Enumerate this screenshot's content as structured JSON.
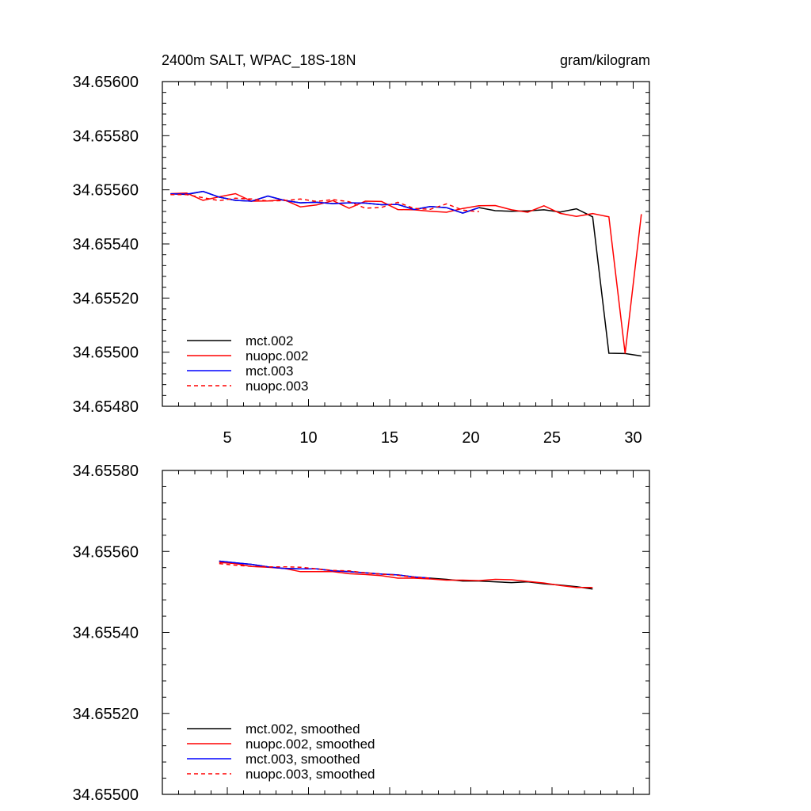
{
  "title": "2400m SALT, WPAC_18S-18N",
  "units": "gram/kilogram",
  "chart_data": [
    {
      "type": "line",
      "name": "raw",
      "xlim": [
        1,
        31
      ],
      "ylim": [
        34.6548,
        34.656
      ],
      "x_ticks": [
        5,
        10,
        15,
        20,
        25,
        30
      ],
      "x_tick_labels": [
        "5",
        "10",
        "15",
        "20",
        "25",
        "30"
      ],
      "y_ticks": [
        34.6548,
        34.655,
        34.6552,
        34.6554,
        34.6556,
        34.6558,
        34.656
      ],
      "y_tick_labels": [
        "34.65480",
        "34.65500",
        "34.65520",
        "34.65540",
        "34.65560",
        "34.65580",
        "34.65600"
      ],
      "legend_position": "bottom-left",
      "series": [
        {
          "name": "mct.002",
          "color": "#000000",
          "dashed": false,
          "x": [
            1.5,
            2.5,
            3.5,
            4.5,
            5.5,
            6.5,
            7.5,
            8.5,
            9.5,
            10.5,
            11.5,
            12.5,
            13.5,
            14.5,
            15.5,
            16.5,
            17.5,
            18.5,
            19.5,
            20.5,
            21.5,
            22.5,
            23.5,
            24.5,
            25.5,
            26.5,
            27.5,
            28.5,
            29.5,
            30.5
          ],
          "values": [
            34.655585,
            34.655583,
            34.655594,
            34.655573,
            34.655561,
            34.655558,
            34.655577,
            34.655561,
            34.655552,
            34.655554,
            34.655549,
            34.655552,
            34.655551,
            34.655545,
            34.655546,
            34.655527,
            34.655538,
            34.655534,
            34.655514,
            34.655534,
            34.655523,
            34.655521,
            34.655522,
            34.655526,
            34.655518,
            34.65553,
            34.6555,
            34.654996,
            34.654995,
            34.654986
          ]
        },
        {
          "name": "nuopc.002",
          "color": "#ff0000",
          "dashed": false,
          "x": [
            1.5,
            2.5,
            3.5,
            4.5,
            5.5,
            6.5,
            7.5,
            8.5,
            9.5,
            10.5,
            11.5,
            12.5,
            13.5,
            14.5,
            15.5,
            16.5,
            17.5,
            18.5,
            19.5,
            20.5,
            21.5,
            22.5,
            23.5,
            24.5,
            25.5,
            26.5,
            27.5,
            28.5,
            29.5,
            30.5
          ],
          "values": [
            34.655586,
            34.655588,
            34.655561,
            34.655574,
            34.655586,
            34.655558,
            34.655559,
            34.655563,
            34.655537,
            34.655544,
            34.65556,
            34.655532,
            34.655558,
            34.655557,
            34.655527,
            34.655526,
            34.655521,
            34.655517,
            34.655531,
            34.655541,
            34.655542,
            34.655526,
            34.655517,
            34.655541,
            34.655513,
            34.655502,
            34.655512,
            34.6555,
            34.654995,
            34.65551
          ]
        },
        {
          "name": "mct.003",
          "color": "#0000ff",
          "dashed": false,
          "x": [
            1.5,
            2.5,
            3.5,
            4.5,
            5.5,
            6.5,
            7.5,
            8.5,
            9.5,
            10.5,
            11.5,
            12.5,
            13.5,
            14.5,
            15.5,
            16.5,
            17.5,
            18.5,
            19.5,
            20.5
          ],
          "values": [
            34.655585,
            34.655584,
            34.655594,
            34.655573,
            34.655561,
            34.655558,
            34.655577,
            34.655561,
            34.655552,
            34.655554,
            34.655549,
            34.655552,
            34.655551,
            34.655545,
            34.655546,
            34.655527,
            34.655538,
            34.655534,
            34.655514,
            34.655534
          ]
        },
        {
          "name": "nuopc.003",
          "color": "#ff0000",
          "dashed": true,
          "x": [
            1.5,
            2.5,
            3.5,
            4.5,
            5.5,
            6.5,
            7.5,
            8.5,
            9.5,
            10.5,
            11.5,
            12.5,
            13.5,
            14.5,
            15.5,
            16.5,
            17.5,
            18.5,
            19.5,
            20.5
          ],
          "values": [
            34.655582,
            34.655582,
            34.655571,
            34.65556,
            34.655569,
            34.655566,
            34.655559,
            34.65556,
            34.655566,
            34.655557,
            34.655564,
            34.655556,
            34.655532,
            34.655535,
            34.655554,
            34.655531,
            34.655528,
            34.655548,
            34.655525,
            34.655519
          ]
        }
      ]
    },
    {
      "type": "line",
      "name": "smoothed",
      "xlim": [
        1,
        31
      ],
      "ylim": [
        34.655,
        34.6558
      ],
      "x_ticks": [
        5,
        10,
        15,
        20,
        25,
        30
      ],
      "y_ticks": [
        34.655,
        34.6552,
        34.6554,
        34.6556,
        34.6558
      ],
      "y_tick_labels": [
        "34.65500",
        "34.65520",
        "34.65540",
        "34.65560",
        "34.65580"
      ],
      "legend_position": "bottom-left",
      "series": [
        {
          "name": "mct.002, smoothed",
          "color": "#000000",
          "dashed": false,
          "x": [
            4.5,
            5.5,
            6.5,
            7.5,
            8.5,
            9.5,
            10.5,
            11.5,
            12.5,
            13.5,
            14.5,
            15.5,
            16.5,
            17.5,
            18.5,
            19.5,
            20.5,
            21.5,
            22.5,
            23.5,
            24.5,
            25.5,
            26.5,
            27.5
          ],
          "values": [
            34.655576,
            34.655572,
            34.655568,
            34.655562,
            34.655558,
            34.655557,
            34.655557,
            34.655552,
            34.65555,
            34.655547,
            34.655544,
            34.655542,
            34.655537,
            34.655534,
            34.655531,
            34.655527,
            34.655527,
            34.655525,
            34.655523,
            34.655525,
            34.65552,
            34.655517,
            34.655513,
            34.655507
          ]
        },
        {
          "name": "nuopc.002, smoothed",
          "color": "#ff0000",
          "dashed": false,
          "x": [
            4.5,
            5.5,
            6.5,
            7.5,
            8.5,
            9.5,
            10.5,
            11.5,
            12.5,
            13.5,
            14.5,
            15.5,
            16.5,
            17.5,
            18.5,
            19.5,
            20.5,
            21.5,
            22.5,
            23.5,
            24.5,
            25.5,
            26.5,
            27.5
          ],
          "values": [
            34.655573,
            34.65557,
            34.655563,
            34.655561,
            34.655558,
            34.65555,
            34.65555,
            34.65555,
            34.655545,
            34.655543,
            34.65554,
            34.655534,
            34.655534,
            34.655532,
            34.655529,
            34.655529,
            34.655528,
            34.655531,
            34.65553,
            34.655526,
            34.655522,
            34.655516,
            34.655511,
            34.655511
          ]
        },
        {
          "name": "mct.003, smoothed",
          "color": "#0000ff",
          "dashed": false,
          "x": [
            4.5,
            5.5,
            6.5,
            7.5,
            8.5,
            9.5,
            10.5,
            11.5,
            12.5,
            13.5,
            14.5,
            15.5,
            16.5,
            17.5
          ],
          "values": [
            34.655576,
            34.655572,
            34.655568,
            34.655562,
            34.655558,
            34.655557,
            34.655557,
            34.655552,
            34.65555,
            34.655547,
            34.655544,
            34.655542,
            34.655537,
            34.655534
          ]
        },
        {
          "name": "nuopc.003, smoothed",
          "color": "#ff0000",
          "dashed": true,
          "x": [
            4.5,
            5.5,
            6.5,
            7.5,
            8.5,
            9.5,
            10.5,
            11.5,
            12.5,
            13.5,
            14.5,
            15.5,
            16.5,
            17.5
          ],
          "values": [
            34.65557,
            34.655566,
            34.655563,
            34.655562,
            34.655562,
            34.655561,
            34.655557,
            34.655553,
            34.655552,
            34.655547,
            34.655544,
            34.655541,
            34.655536,
            34.655534
          ]
        }
      ]
    }
  ]
}
